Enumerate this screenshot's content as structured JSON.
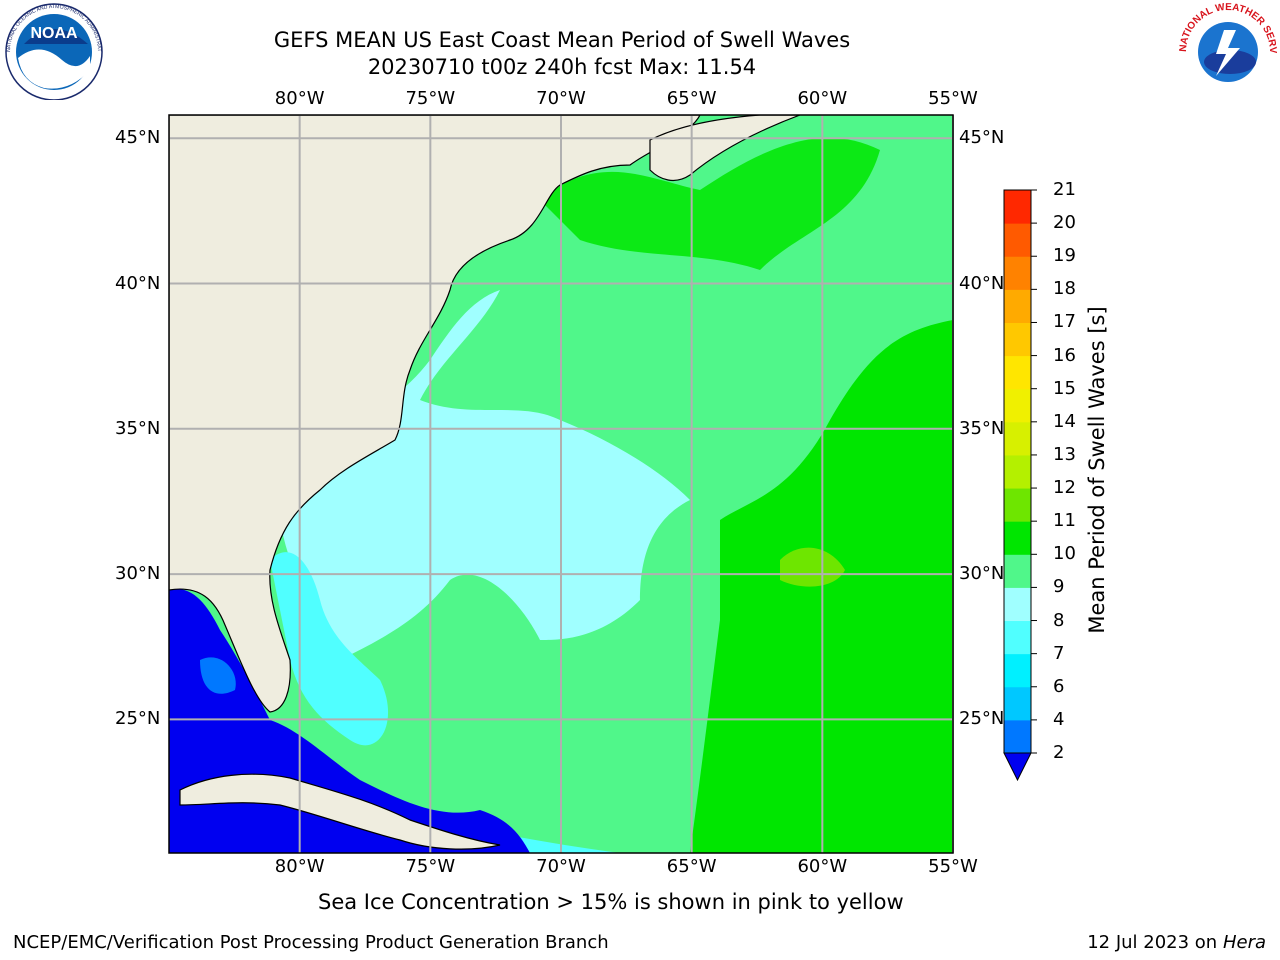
{
  "title": {
    "line1": "GEFS MEAN US East Coast Mean Period of Swell Waves",
    "line2": "20230710 t00z 240h fcst   Max: 11.54"
  },
  "map": {
    "lon_labels": [
      "80°W",
      "75°W",
      "70°W",
      "65°W",
      "60°W",
      "55°W"
    ],
    "lat_labels": [
      "45°N",
      "40°N",
      "35°N",
      "30°N",
      "25°N"
    ],
    "lon_range": [
      -85,
      -55
    ],
    "lat_range": [
      20.4,
      45.8
    ],
    "land_color": "#efeddf",
    "grid_color": "#b0b0b0"
  },
  "colorbar": {
    "label": "Mean Period of Swell Waves [s]",
    "ticks": [
      "2",
      "4",
      "6",
      "7",
      "8",
      "9",
      "10",
      "11",
      "12",
      "13",
      "14",
      "15",
      "16",
      "17",
      "18",
      "19",
      "20",
      "21"
    ],
    "colors": [
      "#0000f0",
      "#0078ff",
      "#00c8ff",
      "#00f0ff",
      "#50ffff",
      "#a0ffff",
      "#50f78a",
      "#00e600",
      "#6ee600",
      "#b4f000",
      "#d7f000",
      "#f0f000",
      "#ffe600",
      "#ffc800",
      "#ffaa00",
      "#ff8200",
      "#ff5a00",
      "#ff2800",
      "#ff0000"
    ]
  },
  "legend_note": "Sea Ice Concentration > 15% is shown in pink to yellow",
  "footer": {
    "left": "NCEP/EMC/Verification Post Processing Product Generation Branch",
    "date": "12 Jul 2023 on ",
    "machine": "Hera"
  },
  "logos": {
    "noaa_text": "NOAA",
    "noaa_ring": "NATIONAL OCEANIC AND ATMOSPHERIC ADMINISTRATION · U.S. DEPARTMENT OF COMMERCE",
    "nws_ring": "NATIONAL WEATHER SERVICE"
  }
}
